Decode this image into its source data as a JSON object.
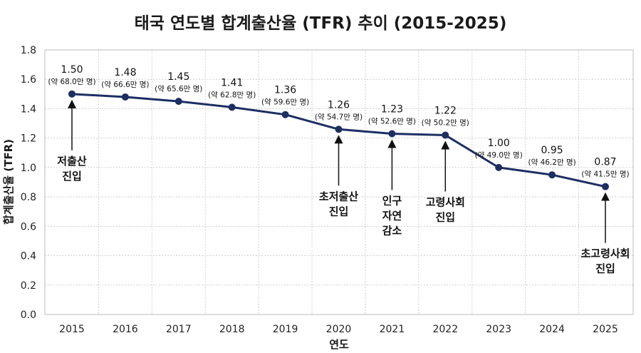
{
  "chart_data": {
    "type": "line",
    "title": "태국 연도별 합계출산율 (TFR) 추이 (2015-2025)",
    "xlabel": "연도",
    "ylabel": "합계출산율 (TFR)",
    "ylim": [
      0,
      1.8
    ],
    "y_ticks": [
      "0.0",
      "0.2",
      "0.4",
      "0.6",
      "0.8",
      "1.0",
      "1.2",
      "1.4",
      "1.6",
      "1.8"
    ],
    "grid": true,
    "categories": [
      "2015",
      "2016",
      "2017",
      "2018",
      "2019",
      "2020",
      "2021",
      "2022",
      "2023",
      "2024",
      "2025"
    ],
    "series": [
      {
        "values": [
          1.5,
          1.48,
          1.45,
          1.41,
          1.36,
          1.26,
          1.23,
          1.22,
          1.0,
          0.95,
          0.87
        ],
        "color": "#1c2f63"
      }
    ],
    "value_labels": [
      "1.50",
      "1.48",
      "1.45",
      "1.41",
      "1.36",
      "1.26",
      "1.23",
      "1.22",
      "1.00",
      "0.95",
      "0.87"
    ],
    "births_labels": [
      "(약 68.0만 명)",
      "(약 66.6만 명)",
      "(약 65.6만 명)",
      "(약 62.8만 명)",
      "(약 59.6만 명)",
      "(약 54.7만 명)",
      "(약 52.6만 명)",
      "(약 50.2만 명)",
      "(약 49.0만 명)",
      "(약 46.2만 명)",
      "(약 41.5만 명)"
    ],
    "annotations": [
      {
        "index": 0,
        "lines": [
          "저출산",
          "진입"
        ]
      },
      {
        "index": 5,
        "lines": [
          "초저출산",
          "진입"
        ]
      },
      {
        "index": 6,
        "lines": [
          "인구",
          "자연",
          "감소"
        ]
      },
      {
        "index": 7,
        "lines": [
          "고령사회",
          "진입"
        ]
      },
      {
        "index": 10,
        "lines": [
          "초고령사회",
          "진입"
        ]
      }
    ]
  }
}
